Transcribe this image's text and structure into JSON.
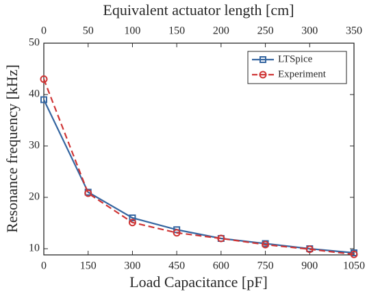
{
  "chart_data": {
    "type": "line",
    "xlabel": "Load Capacitance [pF]",
    "x2label": "Equivalent actuator length [cm]",
    "ylabel": "Resonance frequency [kHz]",
    "x": [
      0,
      150,
      300,
      450,
      600,
      750,
      900,
      1050
    ],
    "xlim": [
      0,
      1050
    ],
    "xticks": [
      0,
      150,
      300,
      450,
      600,
      750,
      900,
      1050
    ],
    "x2lim": [
      0,
      350
    ],
    "x2ticks": [
      0,
      50,
      100,
      150,
      200,
      250,
      300,
      350
    ],
    "ylim": [
      8.8,
      50
    ],
    "yticks": [
      10,
      20,
      30,
      40,
      50
    ],
    "legend": "upper right",
    "series": [
      {
        "name": "LTSpice",
        "color": "#3465a0",
        "dash": false,
        "marker": "square",
        "values": [
          39,
          21,
          16,
          13.7,
          12,
          11,
          10,
          9.2
        ]
      },
      {
        "name": "Experiment",
        "color": "#cf3434",
        "dash": true,
        "marker": "circle",
        "values": [
          43,
          20.8,
          15.1,
          13.1,
          12,
          10.8,
          9.9,
          8.9
        ]
      }
    ]
  }
}
